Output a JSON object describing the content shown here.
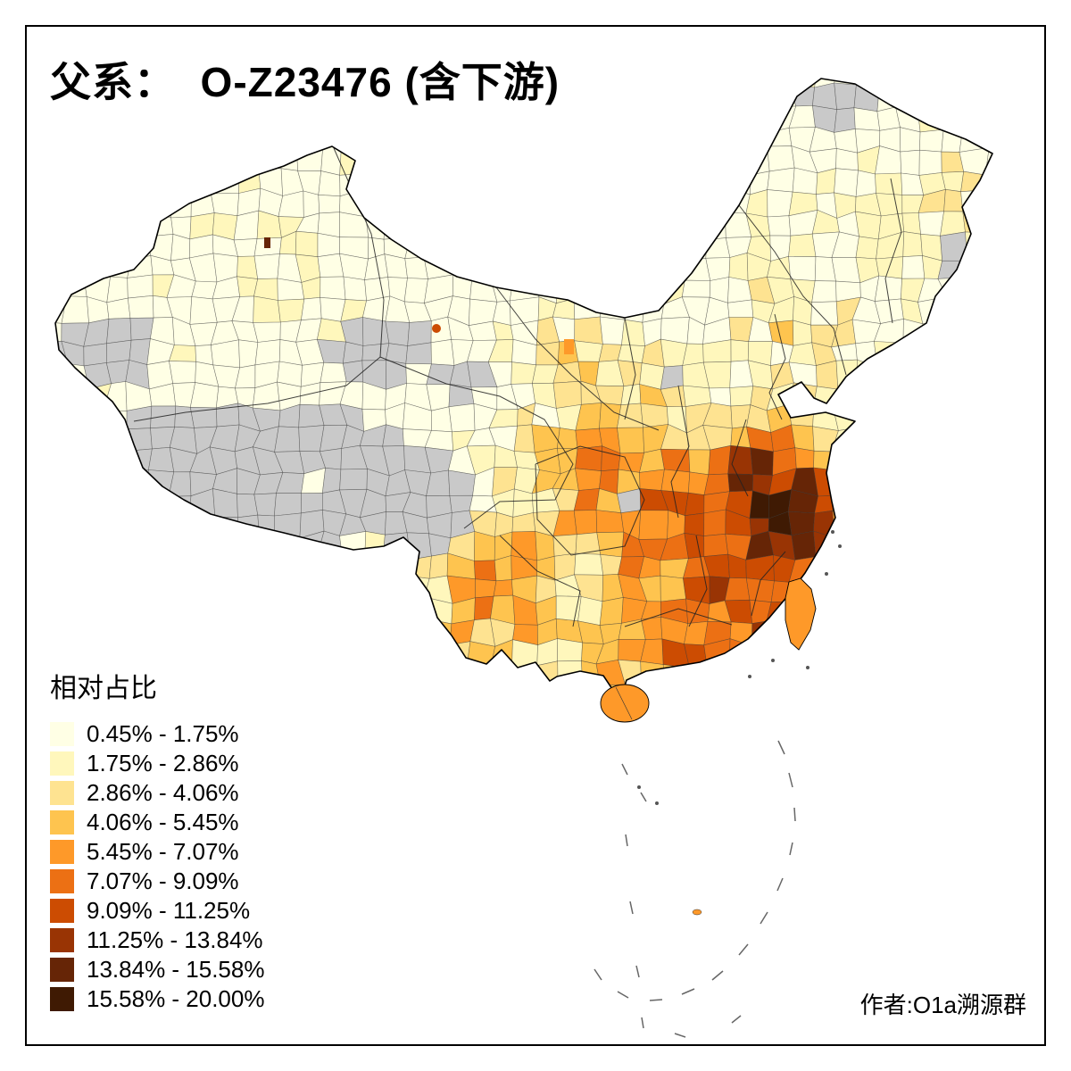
{
  "title": "父系：  O-Z23476 (含下游)",
  "legend": {
    "title": "相对占比",
    "no_data_color": "#C9C9C9",
    "items": [
      {
        "label": "0.45% - 1.75%",
        "color": "#FFFFE5"
      },
      {
        "label": "1.75% - 2.86%",
        "color": "#FFF7BC"
      },
      {
        "label": "2.86% - 4.06%",
        "color": "#FEE391"
      },
      {
        "label": "4.06% - 5.45%",
        "color": "#FEC44F"
      },
      {
        "label": "5.45% - 7.07%",
        "color": "#FE9929"
      },
      {
        "label": "7.07% - 9.09%",
        "color": "#EC7014"
      },
      {
        "label": "9.09% - 11.25%",
        "color": "#CC4C02"
      },
      {
        "label": "11.25% - 13.84%",
        "color": "#993404"
      },
      {
        "label": "13.84% - 15.58%",
        "color": "#662506"
      },
      {
        "label": "15.58% - 20.00%",
        "color": "#3F1A03"
      }
    ]
  },
  "credit": "作者:O1a溯源群",
  "map": {
    "type": "choropleth",
    "region": "China (prefecture level)",
    "value_label": "相对占比"
  }
}
